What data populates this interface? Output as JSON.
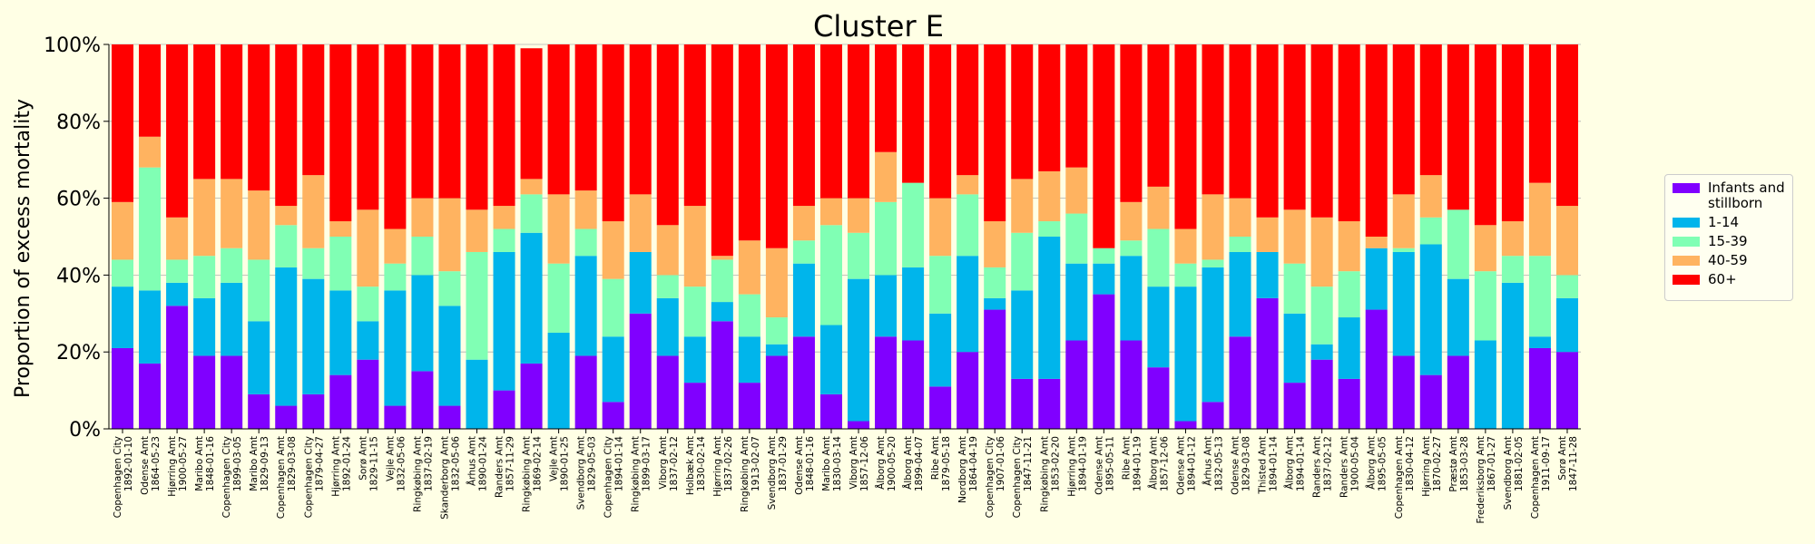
{
  "chart_data": {
    "type": "bar",
    "stacked": true,
    "title": "Cluster E",
    "ylabel": "Proportion of excess mortality",
    "xlabel": "",
    "ylim": [
      0,
      1
    ],
    "yticks": [
      "0%",
      "20%",
      "40%",
      "60%",
      "80%",
      "100%"
    ],
    "grid": "horizontal",
    "legend_position": "right",
    "colors": [
      "#8000ff",
      "#00b5eb",
      "#80ffb4",
      "#ffb360",
      "#ff0000"
    ],
    "categories": [
      "Copenhagen City\n1892-01-10",
      "Odense Amt\n1864-05-23",
      "Hjørring Amt\n1900-05-27",
      "Maribo Amt\n1848-01-16",
      "Copenhagen City\n1899-03-05",
      "Maribo Amt\n1829-09-13",
      "Copenhagen Amt\n1829-03-08",
      "Copenhagen City\n1879-04-27",
      "Hjørring Amt\n1892-01-24",
      "Sorø Amt\n1829-11-15",
      "Vejle Amt\n1832-05-06",
      "Ringkøbing Amt\n1837-02-19",
      "Skanderborg Amt\n1832-05-06",
      "Århus Amt\n1890-01-24",
      "Randers Amt\n1857-11-29",
      "Ringkøbing Amt\n1869-02-14",
      "Vejle Amt\n1890-01-25",
      "Svendborg Amt\n1829-05-03",
      "Copenhagen City\n1894-01-14",
      "Ringkøbing Amt\n1899-03-17",
      "Viborg Amt\n1837-02-12",
      "Holbæk Amt\n1830-02-14",
      "Hjørring Amt\n1837-02-26",
      "Ringkøbing Amt\n1913-02-07",
      "Svendborg Amt\n1837-01-29",
      "Odense Amt\n1848-01-16",
      "Maribo Amt\n1830-03-14",
      "Viborg Amt\n1857-12-06",
      "Ålborg Amt\n1900-05-20",
      "Ålborg Amt\n1899-04-07",
      "Ribe Amt\n1879-05-18",
      "Nordborg Amt\n1864-04-19",
      "Copenhagen City\n1907-01-06",
      "Copenhagen City\n1847-11-21",
      "Ringkøbing Amt\n1853-02-20",
      "Hjørring Amt\n1894-01-19",
      "Odense Amt\n1895-05-11",
      "Ribe Amt\n1894-01-19",
      "Ålborg Amt\n1857-12-06",
      "Odense Amt\n1894-01-12",
      "Århus Amt\n1832-05-13",
      "Odense Amt\n1829-03-08",
      "Thisted Amt\n1894-01-14",
      "Ålborg Amt\n1894-01-14",
      "Randers Amt\n1837-02-12",
      "Randers Amt\n1900-05-04",
      "Ålborg Amt\n1895-05-05",
      "Copenhagen Amt\n1830-04-12",
      "Hjørring Amt\n1870-02-27",
      "Præstø Amt\n1853-03-28",
      "Frederiksborg Amt\n1867-01-27",
      "Svendborg Amt\n1881-02-05",
      "Copenhagen Amt\n1911-09-17",
      "Sorø Amt\n1847-11-28"
    ],
    "series": [
      {
        "name": "Infants and\nstillborn",
        "values": [
          0.21,
          0.17,
          0.32,
          0.19,
          0.19,
          0.09,
          0.06,
          0.09,
          0.14,
          0.18,
          0.06,
          0.15,
          0.06,
          0.0,
          0.1,
          0.17,
          0.0,
          0.19,
          0.07,
          0.3,
          0.19,
          0.12,
          0.28,
          0.12,
          0.19,
          0.24,
          0.09,
          0.02,
          0.24,
          0.23,
          0.11,
          0.2,
          0.31,
          0.13,
          0.13,
          0.23,
          0.35,
          0.23,
          0.16,
          0.02,
          0.07,
          0.24,
          0.34,
          0.12,
          0.18,
          0.13,
          0.31,
          0.19,
          0.14,
          0.19,
          0.0,
          0.0,
          0.21,
          0.2
        ]
      },
      {
        "name": "1-14",
        "values": [
          0.16,
          0.19,
          0.06,
          0.15,
          0.19,
          0.19,
          0.36,
          0.3,
          0.22,
          0.1,
          0.3,
          0.25,
          0.26,
          0.18,
          0.36,
          0.34,
          0.25,
          0.26,
          0.17,
          0.16,
          0.15,
          0.12,
          0.05,
          0.12,
          0.03,
          0.19,
          0.18,
          0.37,
          0.16,
          0.19,
          0.19,
          0.25,
          0.03,
          0.23,
          0.37,
          0.2,
          0.08,
          0.22,
          0.21,
          0.35,
          0.35,
          0.22,
          0.12,
          0.18,
          0.04,
          0.16,
          0.16,
          0.27,
          0.34,
          0.2,
          0.23,
          0.38,
          0.03,
          0.14
        ]
      },
      {
        "name": "15-39",
        "values": [
          0.07,
          0.32,
          0.06,
          0.11,
          0.09,
          0.16,
          0.11,
          0.08,
          0.14,
          0.09,
          0.07,
          0.1,
          0.09,
          0.28,
          0.06,
          0.1,
          0.18,
          0.07,
          0.15,
          0.0,
          0.06,
          0.13,
          0.11,
          0.11,
          0.07,
          0.06,
          0.26,
          0.12,
          0.19,
          0.22,
          0.15,
          0.16,
          0.08,
          0.15,
          0.04,
          0.13,
          0.04,
          0.04,
          0.15,
          0.06,
          0.02,
          0.04,
          0.0,
          0.13,
          0.15,
          0.12,
          0.0,
          0.01,
          0.07,
          0.18,
          0.18,
          0.07,
          0.21,
          0.06
        ]
      },
      {
        "name": "40-59",
        "values": [
          0.15,
          0.08,
          0.11,
          0.2,
          0.18,
          0.18,
          0.05,
          0.19,
          0.04,
          0.2,
          0.09,
          0.1,
          0.19,
          0.11,
          0.06,
          0.04,
          0.18,
          0.1,
          0.15,
          0.15,
          0.13,
          0.21,
          0.01,
          0.14,
          0.18,
          0.09,
          0.07,
          0.09,
          0.13,
          0.0,
          0.15,
          0.05,
          0.12,
          0.14,
          0.13,
          0.12,
          0.0,
          0.1,
          0.11,
          0.09,
          0.17,
          0.1,
          0.09,
          0.14,
          0.18,
          0.13,
          0.03,
          0.14,
          0.11,
          0.0,
          0.12,
          0.09,
          0.19,
          0.18
        ]
      },
      {
        "name": "60+",
        "values": [
          0.41,
          0.24,
          0.45,
          0.35,
          0.35,
          0.38,
          0.42,
          0.34,
          0.46,
          0.43,
          0.48,
          0.4,
          0.4,
          0.43,
          0.42,
          0.34,
          0.39,
          0.38,
          0.46,
          0.39,
          0.47,
          0.42,
          0.55,
          0.51,
          0.53,
          0.42,
          0.4,
          0.4,
          0.28,
          0.36,
          0.4,
          0.34,
          0.46,
          0.35,
          0.33,
          0.32,
          0.53,
          0.41,
          0.37,
          0.48,
          0.39,
          0.4,
          0.45,
          0.43,
          0.45,
          0.46,
          0.5,
          0.39,
          0.34,
          0.43,
          0.47,
          0.46,
          0.36,
          0.42
        ]
      }
    ]
  }
}
